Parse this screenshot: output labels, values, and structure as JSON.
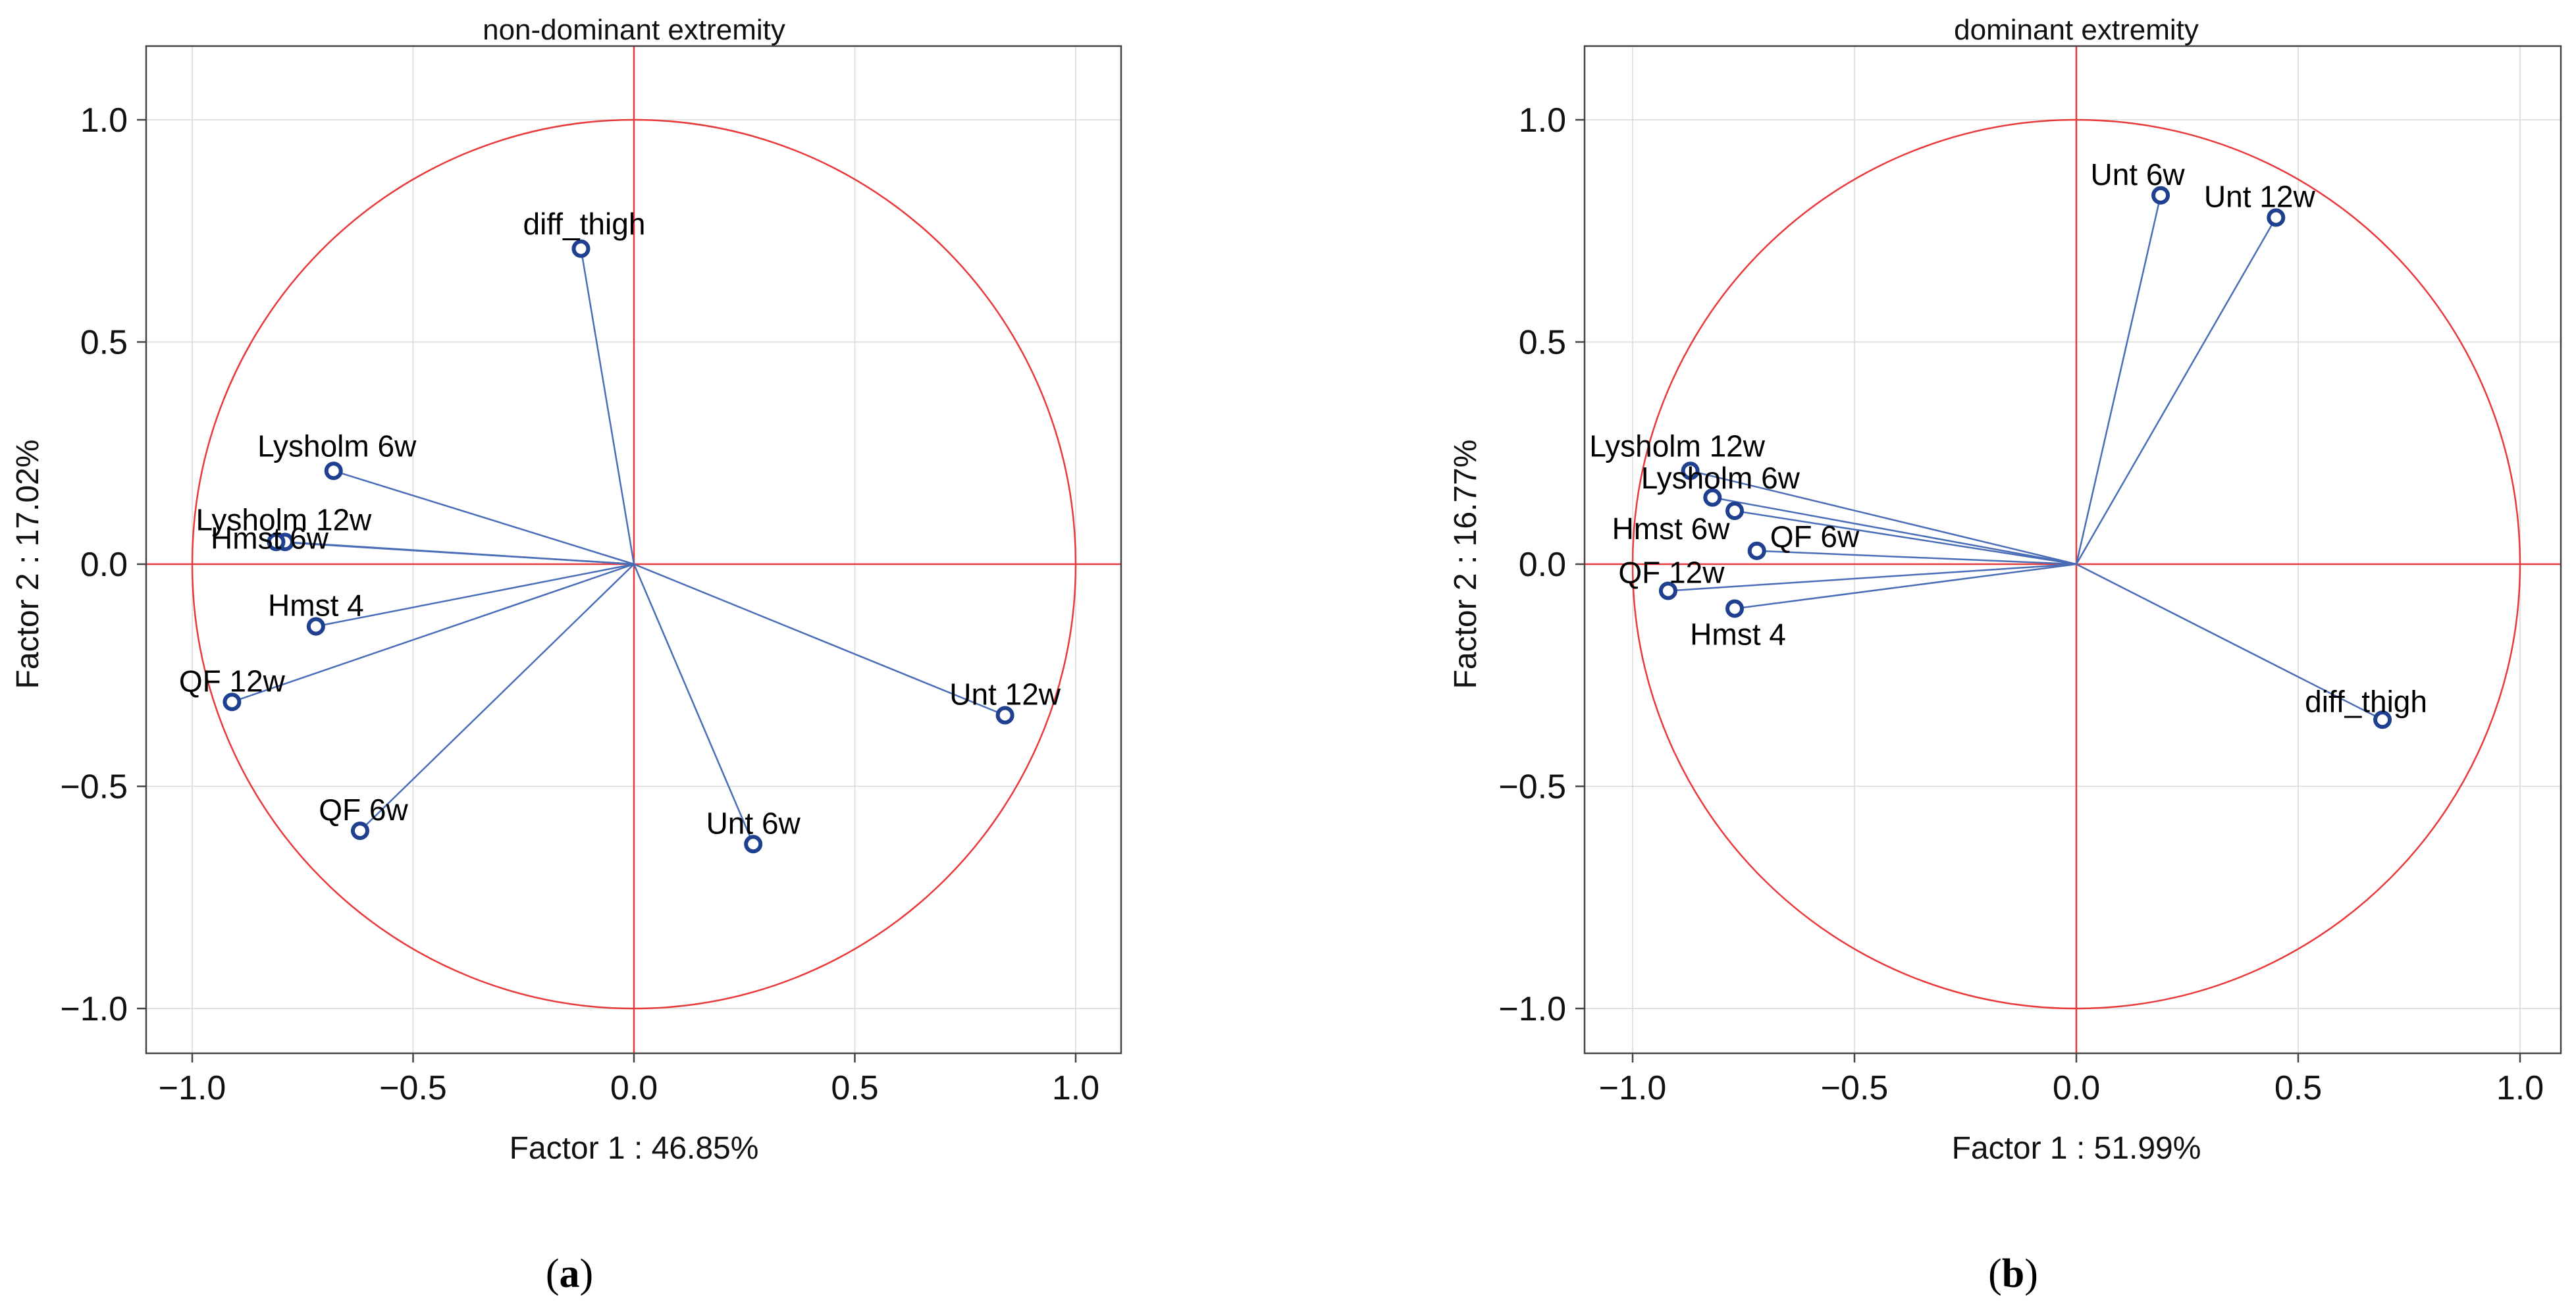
{
  "chart_data": [
    {
      "type": "scatter",
      "subtype": "pca-correlation-circle",
      "panel_label": "(a)",
      "title": "non-dominant extremity",
      "xlabel": "Factor 1 : 46.85%",
      "ylabel": "Factor 2 : 17.02%",
      "xlim": [
        -1.1,
        1.1
      ],
      "ylim": [
        -1.1,
        1.1
      ],
      "xticks": [
        -1.0,
        -0.5,
        0.0,
        0.5,
        1.0
      ],
      "yticks": [
        -1.0,
        -0.5,
        0.0,
        0.5,
        1.0
      ],
      "xtick_labels": [
        "−1.0",
        "−0.5",
        "0.0",
        "0.5",
        "1.0"
      ],
      "ytick_labels": [
        "−1.0",
        "−0.5",
        "0.0",
        "0.5",
        "1.0"
      ],
      "grid": true,
      "points": [
        {
          "label": "diff_thigh",
          "x": -0.12,
          "y": 0.71
        },
        {
          "label": "Lysholm 6w",
          "x": -0.68,
          "y": 0.21
        },
        {
          "label": "Lysholm 12w",
          "x": -0.79,
          "y": 0.05
        },
        {
          "label": "Hmst 6w",
          "x": -0.81,
          "y": 0.05
        },
        {
          "label": "Hmst 4",
          "x": -0.72,
          "y": -0.14
        },
        {
          "label": "QF 12w",
          "x": -0.91,
          "y": -0.31
        },
        {
          "label": "QF 6w",
          "x": -0.62,
          "y": -0.6
        },
        {
          "label": "Unt 6w",
          "x": 0.27,
          "y": -0.63
        },
        {
          "label": "Unt 12w",
          "x": 0.84,
          "y": -0.34
        }
      ]
    },
    {
      "type": "scatter",
      "subtype": "pca-correlation-circle",
      "panel_label": "(b)",
      "title": "dominant extremity",
      "xlabel": "Factor 1 : 51.99%",
      "ylabel": "Factor 2 : 16.77%",
      "xlim": [
        -1.1,
        1.1
      ],
      "ylim": [
        -1.1,
        1.1
      ],
      "xticks": [
        -1.0,
        -0.5,
        0.0,
        0.5,
        1.0
      ],
      "yticks": [
        -1.0,
        -0.5,
        0.0,
        0.5,
        1.0
      ],
      "xtick_labels": [
        "−1.0",
        "−0.5",
        "0.0",
        "0.5",
        "1.0"
      ],
      "ytick_labels": [
        "−1.0",
        "−0.5",
        "0.0",
        "0.5",
        "1.0"
      ],
      "grid": true,
      "points": [
        {
          "label": "Unt 6w",
          "x": 0.19,
          "y": 0.83
        },
        {
          "label": "Unt 12w",
          "x": 0.45,
          "y": 0.78
        },
        {
          "label": "Lysholm 12w",
          "x": -0.87,
          "y": 0.21
        },
        {
          "label": "Lysholm 6w",
          "x": -0.82,
          "y": 0.15
        },
        {
          "label": "Hmst 6w",
          "x": -0.77,
          "y": 0.12
        },
        {
          "label": "QF 6w",
          "x": -0.72,
          "y": 0.03
        },
        {
          "label": "QF 12w",
          "x": -0.92,
          "y": -0.06
        },
        {
          "label": "Hmst 4",
          "x": -0.77,
          "y": -0.1
        },
        {
          "label": "diff_thigh",
          "x": 0.69,
          "y": -0.35
        }
      ]
    }
  ]
}
